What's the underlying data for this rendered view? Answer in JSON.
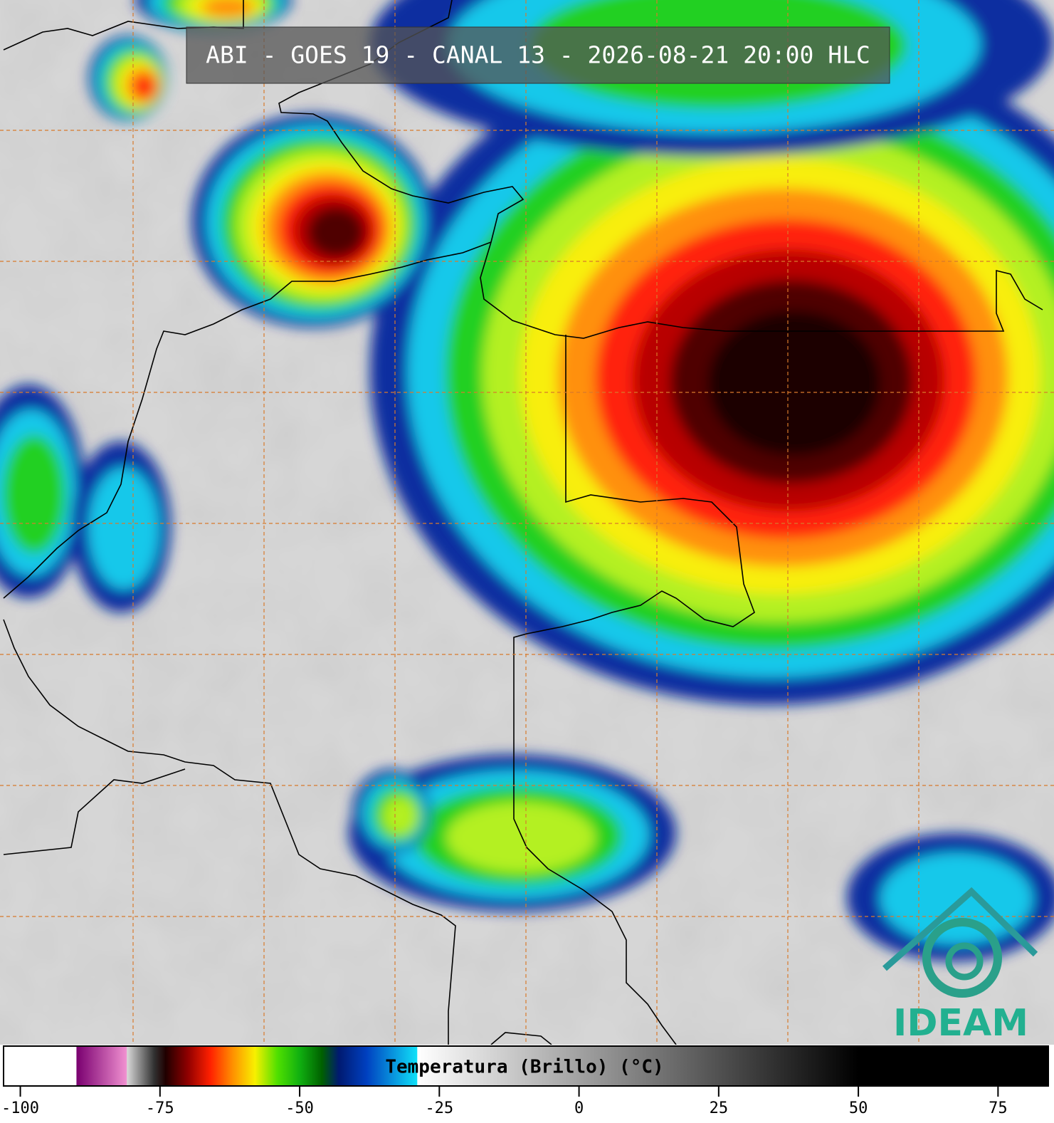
{
  "header": {
    "title": "ABI - GOES 19 - CANAL 13 - 2026-08-21 20:00 HLC"
  },
  "colorbar": {
    "label": "Temperatura (Brillo) (°C)",
    "range": [
      -103,
      84
    ],
    "ticks": [
      -100,
      -75,
      -50,
      -25,
      0,
      25,
      50,
      75
    ],
    "stops": [
      {
        "value": -90,
        "color": "#ffffff"
      },
      {
        "value": -89.9,
        "color": "#7a0070"
      },
      {
        "value": -81,
        "color": "#f090d0"
      },
      {
        "value": -80.9,
        "color": "#d8d8d8"
      },
      {
        "value": -76,
        "color": "#303030"
      },
      {
        "value": -74,
        "color": "#200000"
      },
      {
        "value": -70,
        "color": "#900000"
      },
      {
        "value": -66,
        "color": "#ff2000"
      },
      {
        "value": -62,
        "color": "#ff9000"
      },
      {
        "value": -58,
        "color": "#f8f000"
      },
      {
        "value": -54,
        "color": "#50e000"
      },
      {
        "value": -50,
        "color": "#10b010"
      },
      {
        "value": -46,
        "color": "#006000"
      },
      {
        "value": -43,
        "color": "#001a70"
      },
      {
        "value": -38,
        "color": "#0040c0"
      },
      {
        "value": -29,
        "color": "#10e0f8"
      },
      {
        "value": -28.9,
        "color": "#ffffff"
      },
      {
        "value": 50,
        "color": "#000000"
      }
    ]
  },
  "logo": {
    "text": "IDEAM"
  }
}
